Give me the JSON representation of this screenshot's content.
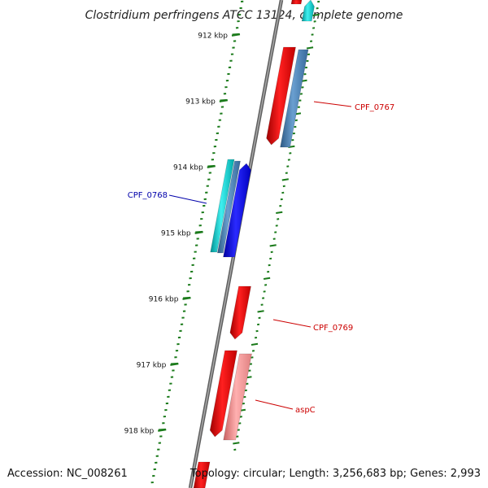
{
  "title": "Clostridium perfringens ATCC 13124, complete genome",
  "footer": {
    "accession": "Accession: NC_008261",
    "summary": "Topology: circular; Length: 3,256,683 bp; Genes: 2,993"
  },
  "ticks": [
    "912 kbp",
    "913 kbp",
    "914 kbp",
    "915 kbp",
    "916 kbp",
    "917 kbp",
    "918 kbp"
  ],
  "gene_labels": [
    {
      "text": "CPF_0767",
      "color": "#cc0000"
    },
    {
      "text": "CPF_0768",
      "color": "#0000aa"
    },
    {
      "text": "CPF_0769",
      "color": "#cc0000"
    },
    {
      "text": "aspC",
      "color": "#cc0000"
    }
  ],
  "colors": {
    "backbone": "#808080",
    "tick": "#1a7a1a",
    "red_gene": "#ff0000",
    "steel_gene": "#4682b4",
    "cyan_gene": "#00c8c8",
    "blue_gene": "#0000ff",
    "pink_gene": "#f08080"
  }
}
